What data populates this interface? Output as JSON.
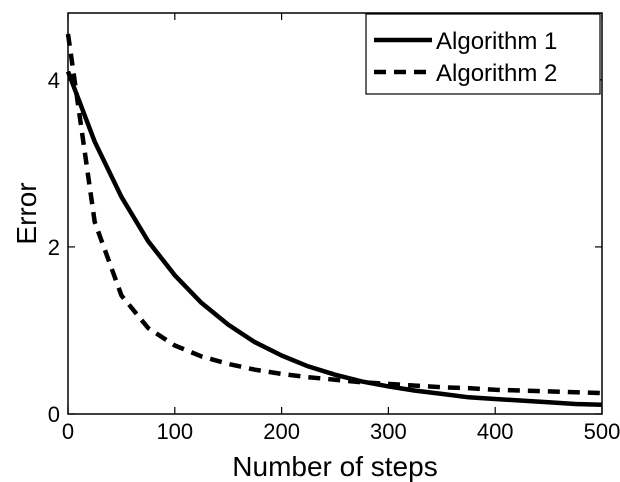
{
  "chart_data": {
    "type": "line",
    "title": "",
    "xlabel": "Number of steps",
    "ylabel": "Error",
    "xlim": [
      0,
      500
    ],
    "ylim": [
      0,
      4.8
    ],
    "xticks": [
      0,
      100,
      200,
      300,
      400,
      500
    ],
    "xtick_labels": [
      "0",
      "100",
      "200",
      "300",
      "400",
      "500"
    ],
    "yticks": [
      0,
      2,
      4
    ],
    "ytick_labels": [
      "0",
      "2",
      "4"
    ],
    "grid": false,
    "legend_position": "top-right",
    "x": [
      0,
      25,
      50,
      75,
      100,
      125,
      150,
      175,
      200,
      225,
      250,
      275,
      300,
      325,
      350,
      375,
      400,
      425,
      450,
      475,
      500
    ],
    "series": [
      {
        "name": "Algorithm 1",
        "line_style": "solid",
        "color": "#000000",
        "values": [
          4.1,
          3.26,
          2.6,
          2.07,
          1.66,
          1.33,
          1.07,
          0.86,
          0.7,
          0.57,
          0.47,
          0.39,
          0.33,
          0.28,
          0.24,
          0.2,
          0.18,
          0.16,
          0.14,
          0.12,
          0.11
        ]
      },
      {
        "name": "Algorithm 2",
        "line_style": "dashed",
        "color": "#000000",
        "values": [
          4.55,
          2.3,
          1.42,
          1.03,
          0.82,
          0.69,
          0.6,
          0.53,
          0.48,
          0.44,
          0.41,
          0.38,
          0.36,
          0.34,
          0.32,
          0.31,
          0.29,
          0.28,
          0.27,
          0.26,
          0.25
        ]
      }
    ]
  }
}
